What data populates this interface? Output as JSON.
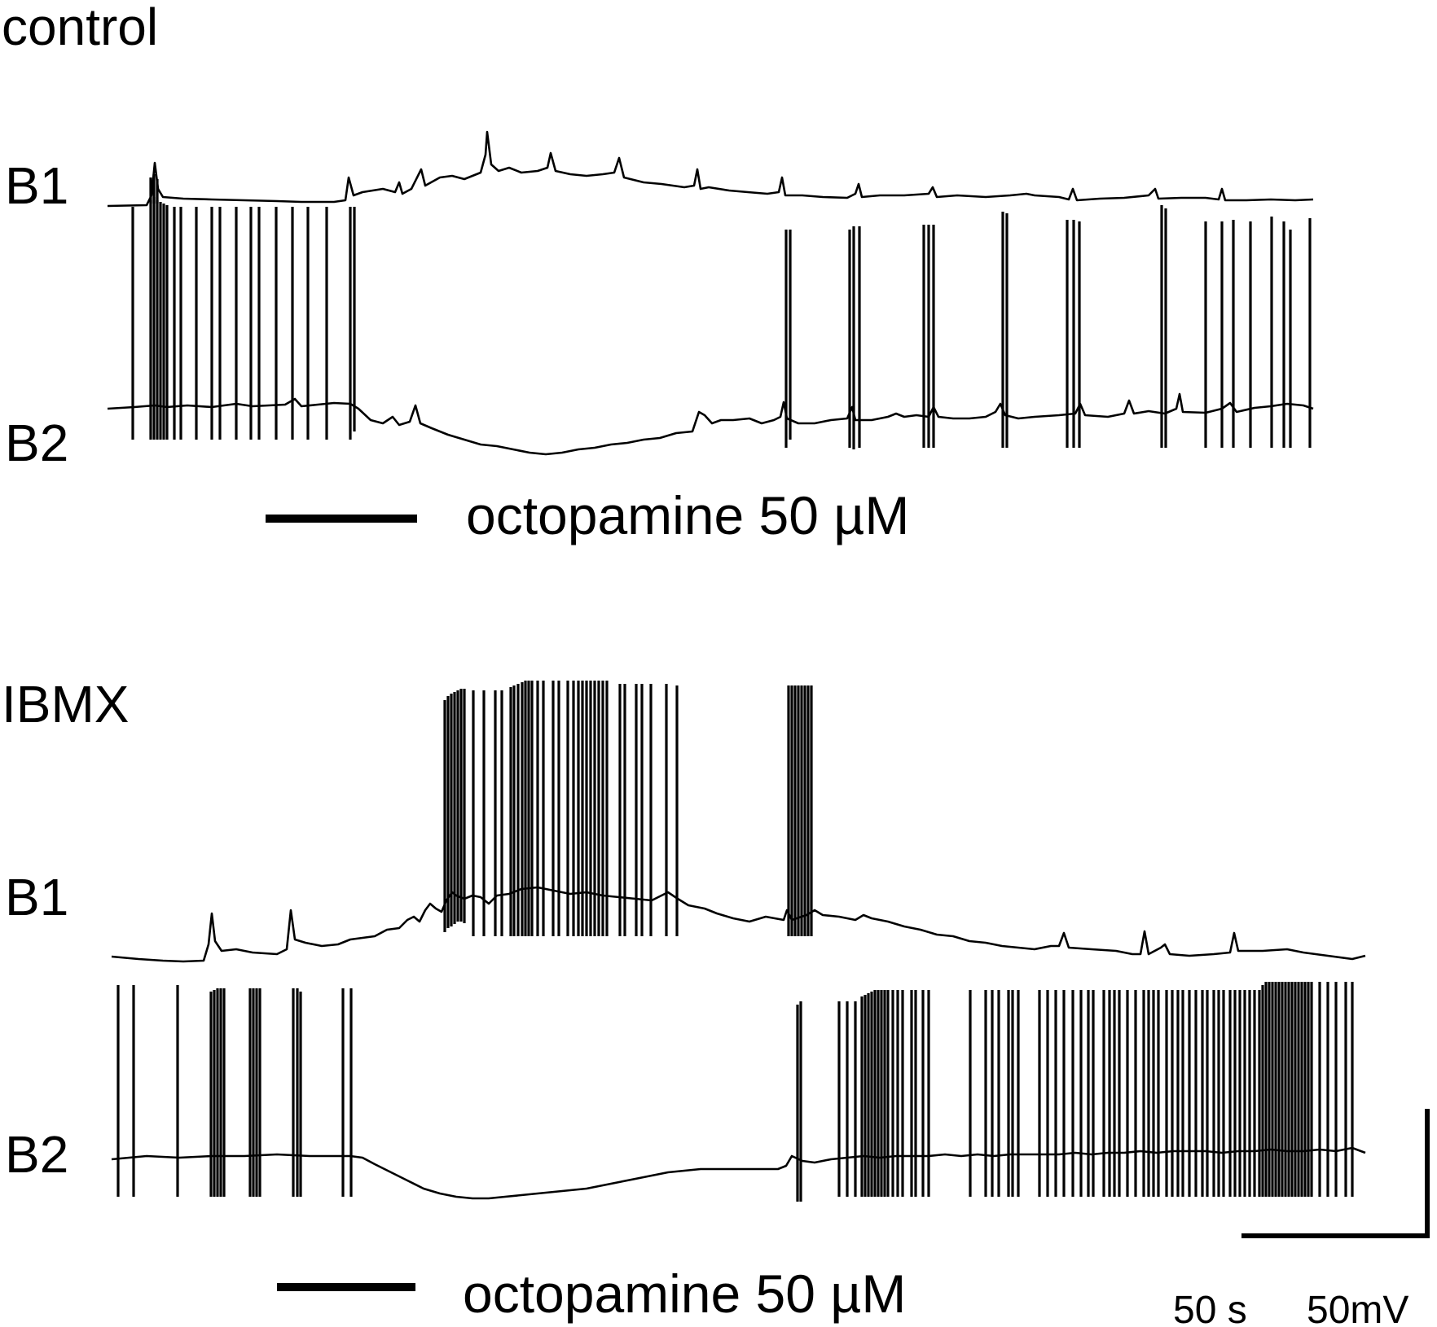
{
  "panels": [
    {
      "title": "control",
      "b1_label": "B1",
      "b2_label": "B2",
      "drug_label": "octopamine 50 µM"
    },
    {
      "title": "IBMX",
      "b1_label": "B1",
      "b2_label": "B2",
      "drug_label": "octopamine 50 µM"
    }
  ],
  "scale_bar": {
    "time_label": "50 s",
    "voltage_label": "50mV"
  }
}
